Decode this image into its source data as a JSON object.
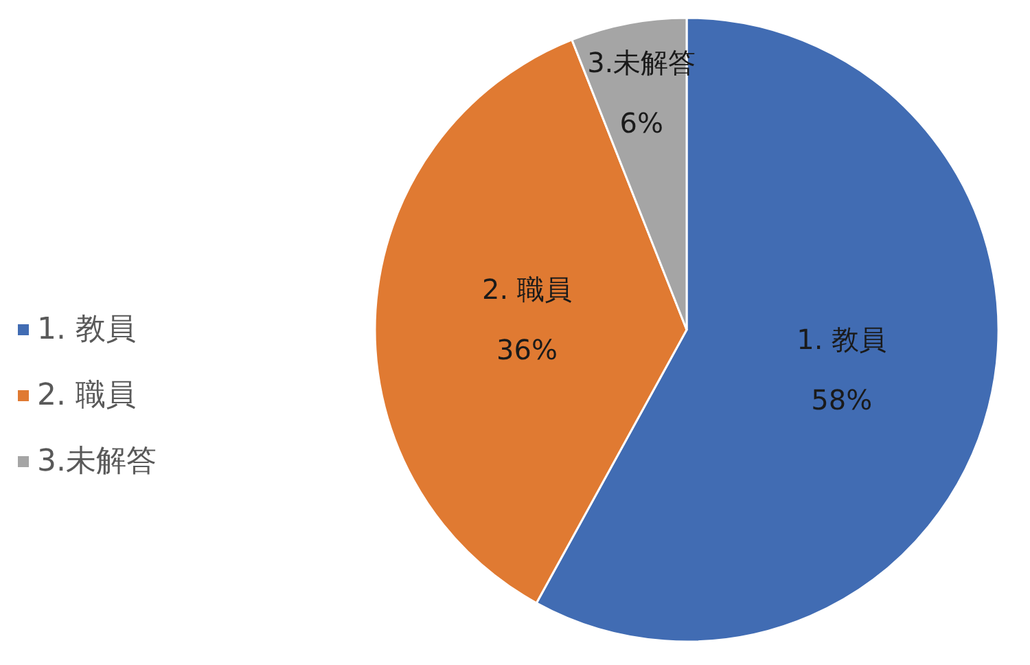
{
  "chart_data": {
    "type": "pie",
    "categories": [
      "1. 教員",
      "2. 職員",
      "3.未解答"
    ],
    "values": [
      58,
      36,
      6
    ],
    "value_labels": [
      "58%",
      "36%",
      "6%"
    ],
    "colors": [
      "#416cb3",
      "#e07a32",
      "#a5a5a5"
    ],
    "legend": "left"
  }
}
